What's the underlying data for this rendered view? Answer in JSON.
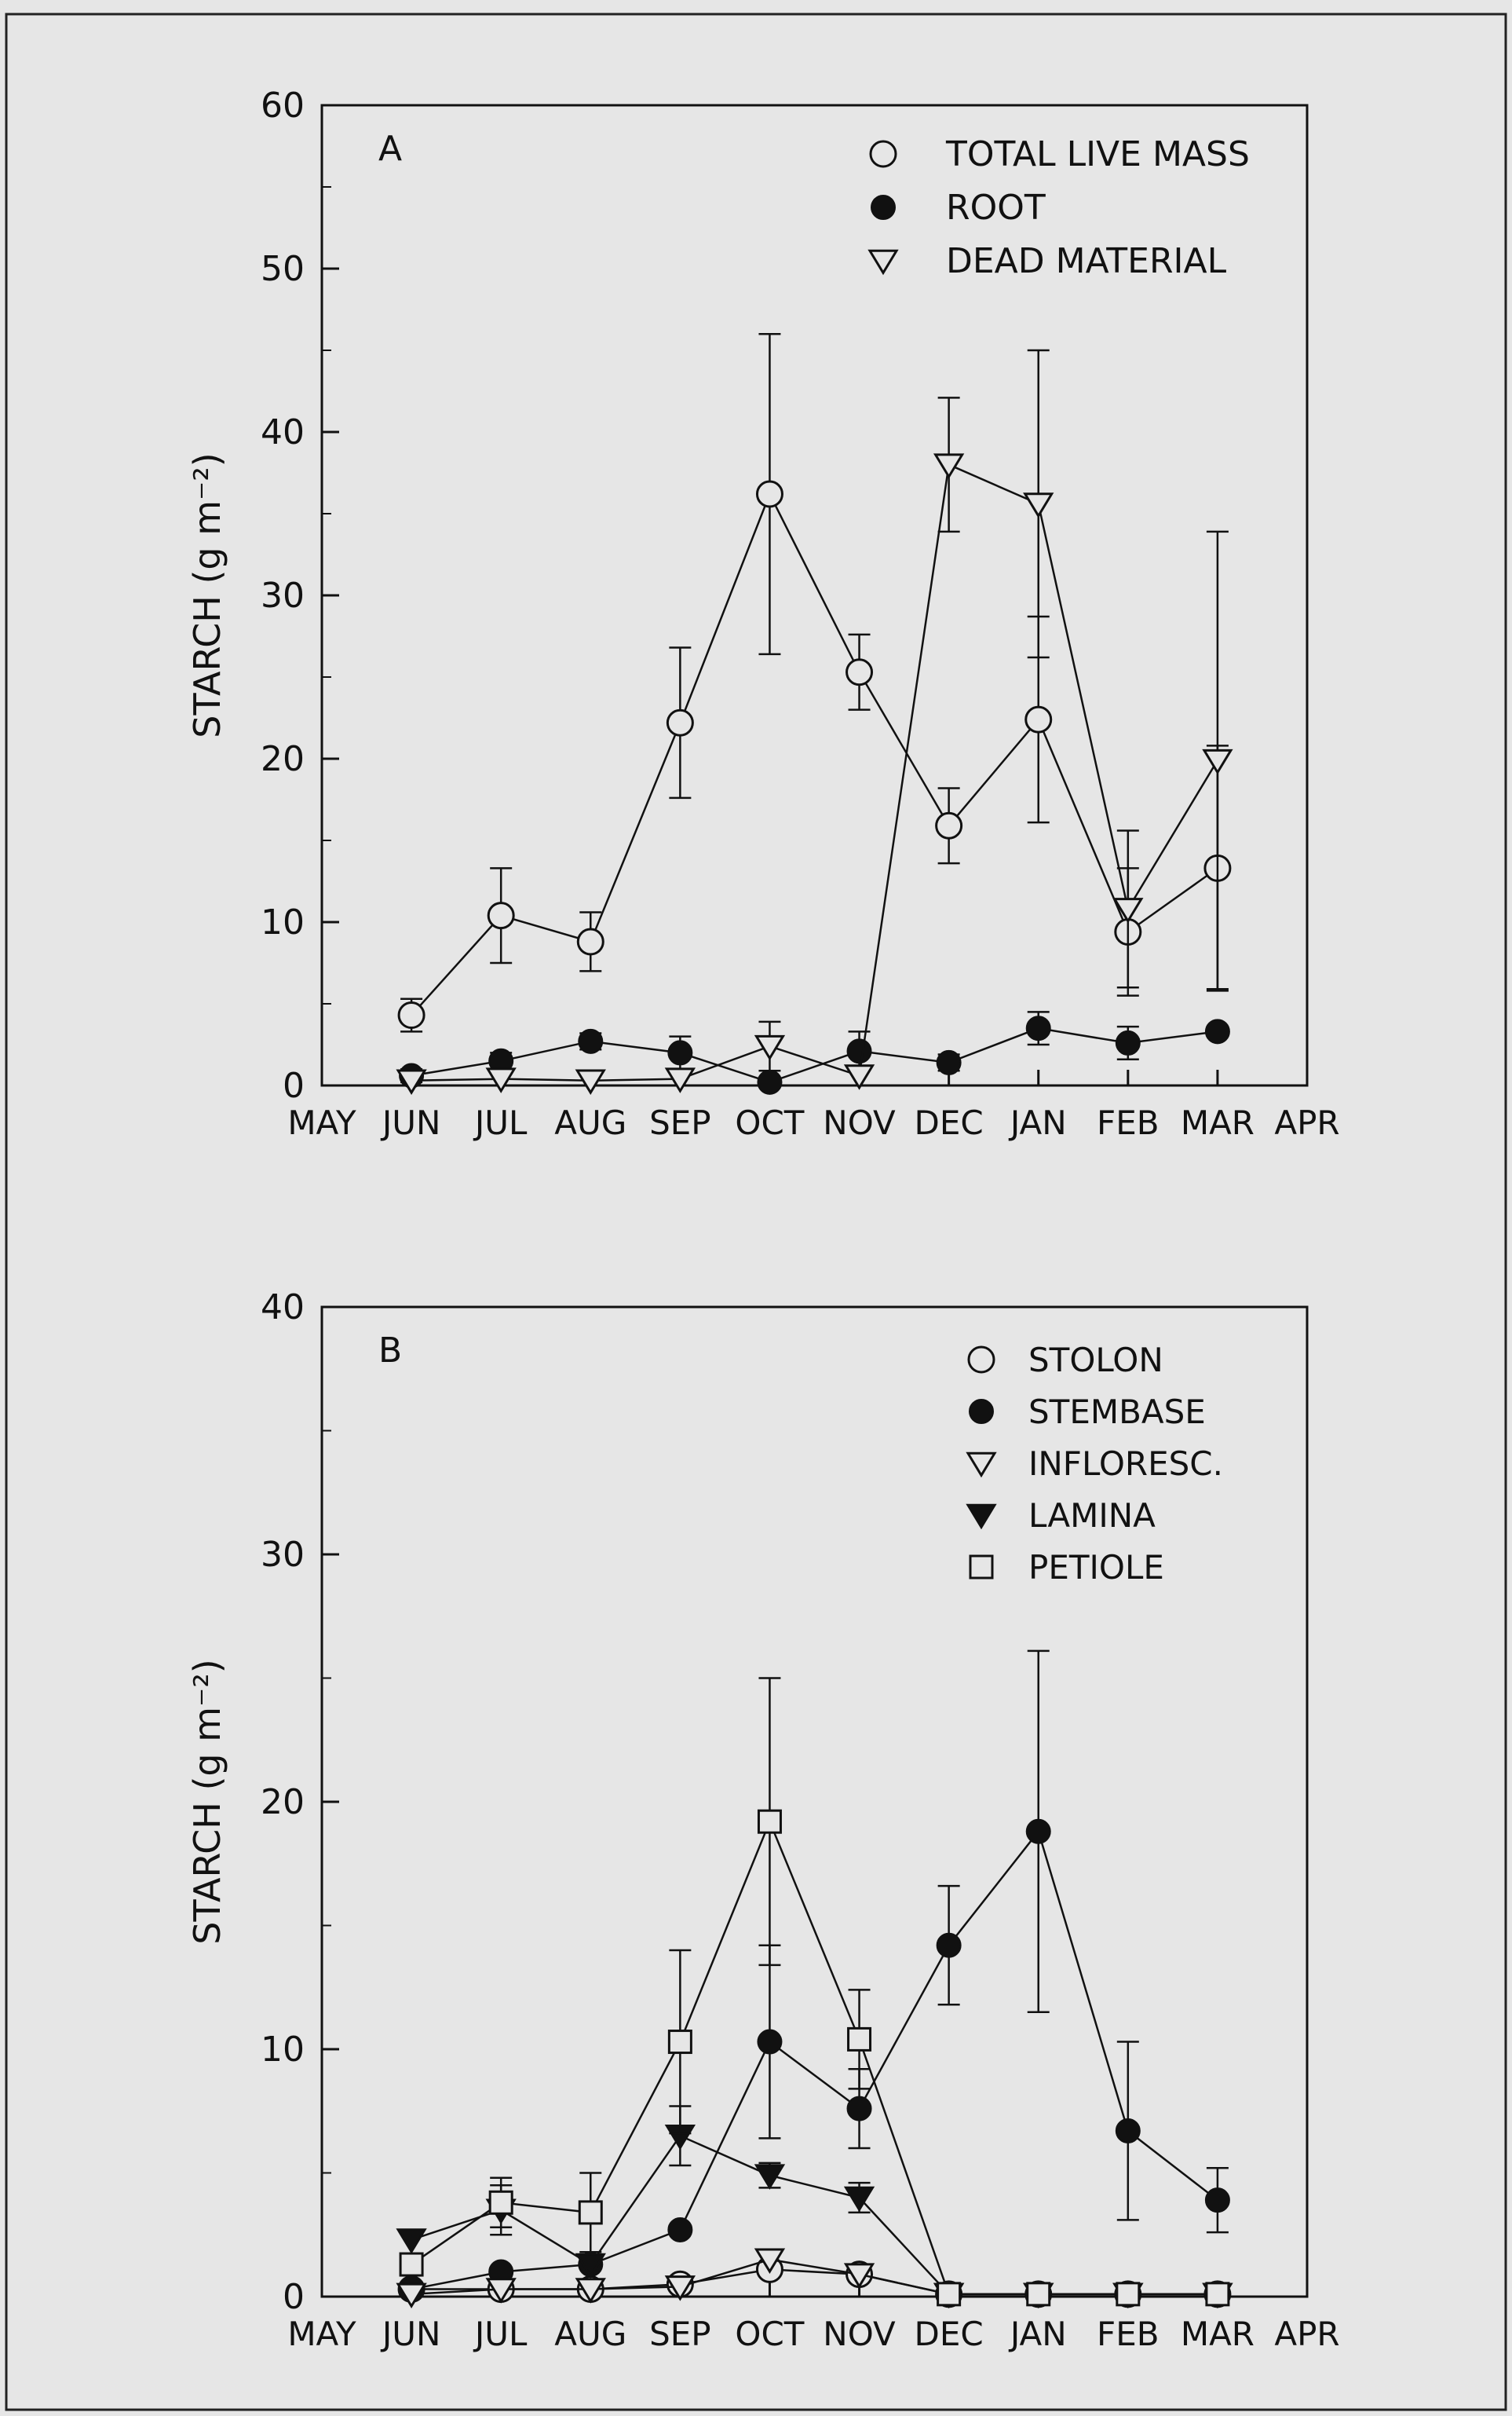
{
  "x_tick_labels": [
    "MAY",
    "JUN",
    "JUL",
    "AUG",
    "SEP",
    "OCT",
    "NOV",
    "DEC",
    "JAN",
    "FEB",
    "MAR",
    "APR"
  ],
  "chart_data": [
    {
      "type": "line",
      "panel_label": "A",
      "ylabel": "STARCH (g m⁻²)",
      "ylim": [
        0,
        60
      ],
      "yticks": [
        0,
        10,
        20,
        30,
        40,
        50,
        60
      ],
      "x": [
        "JUN",
        "JUL",
        "AUG",
        "SEP",
        "OCT",
        "NOV",
        "DEC",
        "JAN",
        "FEB",
        "MAR"
      ],
      "legend_position": "top-right",
      "series": [
        {
          "name": "TOTAL LIVE MASS",
          "marker": "open-circle",
          "values": [
            4.3,
            10.4,
            8.8,
            22.2,
            36.2,
            25.3,
            15.9,
            22.4,
            9.4,
            13.3
          ],
          "errors": [
            1.0,
            2.9,
            1.8,
            4.6,
            9.8,
            2.3,
            2.3,
            6.3,
            3.9,
            7.5
          ]
        },
        {
          "name": "ROOT",
          "marker": "filled-circle",
          "values": [
            0.6,
            1.5,
            2.7,
            2.0,
            0.2,
            2.1,
            1.4,
            3.5,
            2.6,
            3.3
          ],
          "errors": [
            0.4,
            0.5,
            0.5,
            1.0,
            0,
            1.2,
            0.5,
            1.0,
            1.0,
            0
          ]
        },
        {
          "name": "DEAD MATERIAL",
          "marker": "open-triangle-down",
          "values": [
            0.3,
            0.4,
            0.3,
            0.4,
            2.4,
            0.6,
            38.0,
            35.6,
            10.8,
            19.9
          ],
          "errors": [
            0,
            0,
            0,
            0,
            1.5,
            0,
            4.1,
            9.4,
            4.8,
            14.0
          ]
        }
      ]
    },
    {
      "type": "line",
      "panel_label": "B",
      "ylabel": "STARCH (g m⁻²)",
      "ylim": [
        0,
        40
      ],
      "yticks": [
        0,
        10,
        20,
        30,
        40
      ],
      "x": [
        "JUN",
        "JUL",
        "AUG",
        "SEP",
        "OCT",
        "NOV",
        "DEC",
        "JAN",
        "FEB",
        "MAR"
      ],
      "legend_position": "top-right",
      "series": [
        {
          "name": "STOLON",
          "marker": "open-circle",
          "values": [
            0.3,
            0.3,
            0.3,
            0.5,
            1.1,
            0.9,
            0.1,
            0.1,
            0.1,
            0.1
          ],
          "errors": [
            0,
            0,
            0,
            0,
            0,
            0,
            0,
            0,
            0,
            0
          ]
        },
        {
          "name": "STEMBASE",
          "marker": "filled-circle",
          "values": [
            0.3,
            1.0,
            1.3,
            2.7,
            10.3,
            7.6,
            14.2,
            18.8,
            6.7,
            3.9
          ],
          "errors": [
            0,
            0,
            0,
            0,
            3.9,
            1.6,
            2.4,
            7.3,
            3.6,
            1.3
          ]
        },
        {
          "name": "INFLORESC.",
          "marker": "open-triangle-down",
          "values": [
            0.1,
            0.3,
            0.3,
            0.4,
            1.5,
            0.9,
            0.1,
            0.1,
            0.1,
            0.1
          ],
          "errors": [
            0,
            0,
            0,
            0,
            0,
            0,
            0,
            0,
            0,
            0
          ]
        },
        {
          "name": "LAMINA",
          "marker": "filled-triangle-down",
          "values": [
            2.3,
            3.5,
            1.3,
            6.5,
            4.9,
            4.0,
            0.1,
            0.1,
            0.1,
            0.1
          ],
          "errors": [
            0,
            1.0,
            0,
            1.2,
            0.5,
            0.6,
            0,
            0,
            0,
            0
          ]
        },
        {
          "name": "PETIOLE",
          "marker": "open-square",
          "values": [
            1.3,
            3.8,
            3.4,
            10.3,
            19.2,
            10.4,
            0.1,
            0.1,
            0.1,
            0.1
          ],
          "errors": [
            0,
            1.0,
            1.6,
            3.7,
            5.8,
            2.0,
            0,
            0,
            0,
            0
          ]
        }
      ]
    }
  ]
}
